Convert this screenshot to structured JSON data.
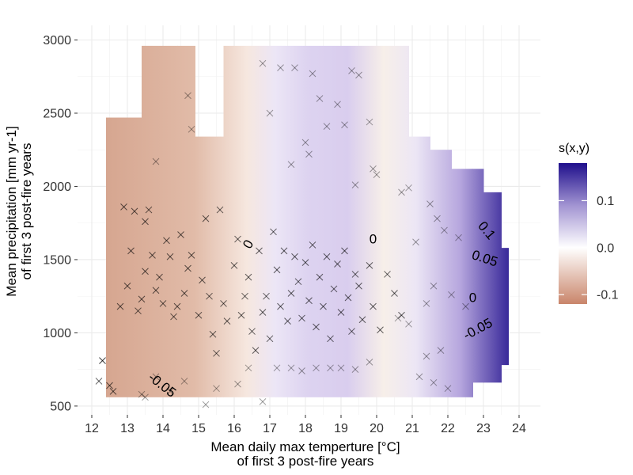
{
  "chart_data": {
    "type": "heatmap",
    "subtype": "filled-contour-with-scatter",
    "xlabel": [
      "Mean daily max temperture [°C]",
      "of first 3 post-fire years"
    ],
    "ylabel": [
      "Mean precipitation [mm yr-1]",
      "of first 3 post-fire years"
    ],
    "xlim": [
      11.6,
      24.6
    ],
    "ylim": [
      440,
      3100
    ],
    "x_ticks": [
      12,
      13,
      14,
      15,
      16,
      17,
      18,
      19,
      20,
      21,
      22,
      23,
      24
    ],
    "y_ticks": [
      500,
      1000,
      1500,
      2000,
      2500,
      3000
    ],
    "grid": true,
    "legend": {
      "title": "s(x,y)",
      "position": "right",
      "min": -0.12,
      "max": 0.18,
      "ticks": [
        0.1,
        0.0,
        -0.1
      ],
      "tick_labels": [
        "0.1",
        "0.0",
        "-0.1"
      ]
    },
    "colors": {
      "low": "#c9856a",
      "mid": "#ffffff",
      "high": "#1f0f8c",
      "points": "#000000"
    },
    "contour_labels": [
      {
        "text": "-0.05",
        "x": 13.9,
        "y": 620,
        "rotation": 38
      },
      {
        "text": "0",
        "x": 16.5,
        "y": 1590,
        "rotation": -60
      },
      {
        "text": "0",
        "x": 19.9,
        "y": 1610,
        "rotation": 0
      },
      {
        "text": "0.1",
        "x": 23.0,
        "y": 1680,
        "rotation": 50
      },
      {
        "text": "0.05",
        "x": 23.0,
        "y": 1480,
        "rotation": 18
      },
      {
        "text": "0",
        "x": 22.7,
        "y": 1210,
        "rotation": 0
      },
      {
        "text": "-0.05",
        "x": 22.9,
        "y": 1000,
        "rotation": -28
      }
    ],
    "domain_rects": [
      [
        12.4,
        13.4,
        560,
        2470
      ],
      [
        13.4,
        14.4,
        560,
        2960
      ],
      [
        14.4,
        14.9,
        560,
        2960
      ],
      [
        14.9,
        15.6,
        560,
        2340
      ],
      [
        15.6,
        15.7,
        560,
        2340
      ],
      [
        15.7,
        20.9,
        560,
        2960
      ],
      [
        20.9,
        21.5,
        560,
        2340
      ],
      [
        21.5,
        22.1,
        560,
        2250
      ],
      [
        22.1,
        22.7,
        560,
        2120
      ],
      [
        22.7,
        23.0,
        660,
        2120
      ],
      [
        23.0,
        23.5,
        660,
        1960
      ],
      [
        23.5,
        23.7,
        780,
        1580
      ]
    ],
    "points_dense": [
      [
        12.2,
        670
      ],
      [
        12.3,
        810
      ],
      [
        12.5,
        640
      ],
      [
        12.6,
        600
      ],
      [
        12.8,
        1180
      ],
      [
        12.9,
        1860
      ],
      [
        13.0,
        1320
      ],
      [
        13.1,
        1560
      ],
      [
        13.2,
        1830
      ],
      [
        13.3,
        1150
      ],
      [
        13.4,
        1230
      ],
      [
        13.5,
        1760
      ],
      [
        13.5,
        1420
      ],
      [
        13.6,
        1840
      ],
      [
        13.7,
        1530
      ],
      [
        13.8,
        1290
      ],
      [
        13.9,
        1380
      ],
      [
        14.0,
        1200
      ],
      [
        14.1,
        1630
      ],
      [
        14.2,
        1520
      ],
      [
        14.3,
        1110
      ],
      [
        14.4,
        1180
      ],
      [
        14.5,
        1670
      ],
      [
        14.6,
        1270
      ],
      [
        14.7,
        1440
      ],
      [
        14.8,
        1530
      ],
      [
        15.0,
        1120
      ],
      [
        15.1,
        1360
      ],
      [
        15.2,
        1780
      ],
      [
        15.3,
        1250
      ],
      [
        15.4,
        990
      ],
      [
        15.5,
        860
      ],
      [
        15.6,
        1840
      ],
      [
        15.7,
        1200
      ],
      [
        15.8,
        1080
      ],
      [
        16.0,
        1460
      ],
      [
        16.1,
        1640
      ],
      [
        16.2,
        1120
      ],
      [
        16.3,
        1250
      ],
      [
        16.4,
        1380
      ],
      [
        16.5,
        1010
      ],
      [
        16.6,
        880
      ],
      [
        16.7,
        1560
      ],
      [
        16.8,
        1140
      ],
      [
        16.9,
        1250
      ],
      [
        17.0,
        960
      ],
      [
        17.1,
        1690
      ],
      [
        17.2,
        1430
      ],
      [
        17.3,
        1180
      ],
      [
        17.4,
        1560
      ],
      [
        17.5,
        1080
      ],
      [
        17.6,
        1270
      ],
      [
        17.7,
        1520
      ],
      [
        17.8,
        1350
      ],
      [
        17.9,
        1100
      ],
      [
        18.0,
        1480
      ],
      [
        18.1,
        1220
      ],
      [
        18.2,
        1600
      ],
      [
        18.3,
        1040
      ],
      [
        18.4,
        1380
      ],
      [
        18.5,
        1180
      ],
      [
        18.6,
        1520
      ],
      [
        18.7,
        960
      ],
      [
        18.8,
        1300
      ],
      [
        18.9,
        1470
      ],
      [
        19.0,
        1140
      ],
      [
        19.1,
        1560
      ],
      [
        19.2,
        1240
      ],
      [
        19.3,
        1010
      ],
      [
        19.4,
        1400
      ],
      [
        19.5,
        1320
      ],
      [
        19.6,
        1090
      ],
      [
        19.8,
        1460
      ],
      [
        19.9,
        1180
      ],
      [
        20.1,
        1020
      ],
      [
        20.3,
        1400
      ],
      [
        20.5,
        1270
      ],
      [
        20.7,
        1120
      ]
    ],
    "points_sparse": [
      [
        13.4,
        580
      ],
      [
        13.5,
        560
      ],
      [
        13.8,
        700
      ],
      [
        14.2,
        600
      ],
      [
        14.6,
        670
      ],
      [
        15.2,
        510
      ],
      [
        15.5,
        620
      ],
      [
        16.1,
        650
      ],
      [
        16.4,
        760
      ],
      [
        16.8,
        530
      ],
      [
        17.2,
        760
      ],
      [
        17.6,
        760
      ],
      [
        17.9,
        740
      ],
      [
        18.3,
        760
      ],
      [
        18.7,
        760
      ],
      [
        19.0,
        760
      ],
      [
        19.4,
        750
      ],
      [
        19.8,
        800
      ],
      [
        16.8,
        2840
      ],
      [
        17.3,
        2810
      ],
      [
        17.7,
        2810
      ],
      [
        18.2,
        2770
      ],
      [
        18.4,
        2600
      ],
      [
        18.6,
        2410
      ],
      [
        19.1,
        2420
      ],
      [
        19.3,
        2790
      ],
      [
        19.5,
        2760
      ],
      [
        18.9,
        2560
      ],
      [
        17.0,
        2500
      ],
      [
        17.6,
        2150
      ],
      [
        18.0,
        2300
      ],
      [
        18.1,
        2220
      ],
      [
        19.8,
        2440
      ],
      [
        19.9,
        2120
      ],
      [
        20.0,
        2080
      ],
      [
        19.4,
        2010
      ],
      [
        20.7,
        1960
      ],
      [
        20.9,
        1990
      ],
      [
        21.5,
        1880
      ],
      [
        21.7,
        1780
      ],
      [
        21.9,
        1700
      ],
      [
        22.3,
        1650
      ],
      [
        21.1,
        1620
      ],
      [
        21.4,
        1200
      ],
      [
        21.6,
        1320
      ],
      [
        22.1,
        1260
      ],
      [
        22.5,
        1180
      ],
      [
        21.4,
        840
      ],
      [
        21.8,
        880
      ],
      [
        21.2,
        700
      ],
      [
        21.6,
        660
      ],
      [
        22.0,
        620
      ],
      [
        20.6,
        1100
      ],
      [
        20.9,
        1060
      ],
      [
        14.7,
        2620
      ],
      [
        14.8,
        2390
      ],
      [
        13.8,
        2170
      ],
      [
        12.3,
        810
      ]
    ]
  }
}
